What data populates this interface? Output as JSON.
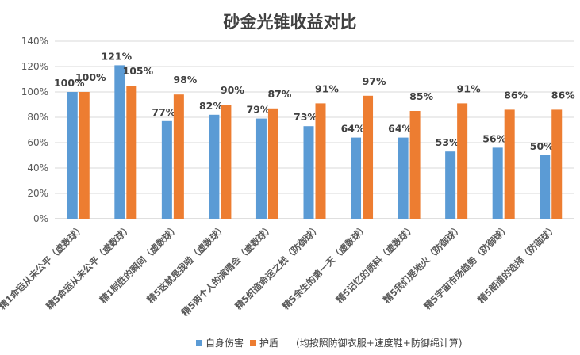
{
  "chart_data": {
    "type": "bar",
    "title": "砂金光锥收益对比",
    "categories": [
      "精1命运从未公平（虚数球）",
      "精5命运从未公平（虚数球）",
      "精1制胜的瞬间（虚数球）",
      "精5这就是我啦（虚数球）",
      "精5两个人的演唱会（虚数球）",
      "精5织造命运之线（防御球）",
      "精5余生的第一天（虚数球）",
      "精5记忆的质料（虚数球）",
      "精5我们是地火（防御球）",
      "精5宇宙市场趋势（防御球）",
      "精5朗道的选择（防御球）"
    ],
    "series": [
      {
        "name": "自身伤害",
        "color": "#5B9BD5",
        "values": [
          100,
          121,
          77,
          82,
          79,
          73,
          64,
          64,
          53,
          56,
          50
        ]
      },
      {
        "name": "护盾",
        "color": "#ED7D31",
        "values": [
          100,
          105,
          98,
          90,
          87,
          91,
          97,
          85,
          91,
          86,
          86
        ]
      }
    ],
    "ylim": [
      0,
      140
    ],
    "yticks": [
      "0%",
      "20%",
      "40%",
      "60%",
      "80%",
      "100%",
      "120%",
      "140%"
    ],
    "grid": true,
    "legend": "bottom",
    "note": "(均按照防御衣服+速度鞋+防御绳计算)"
  }
}
